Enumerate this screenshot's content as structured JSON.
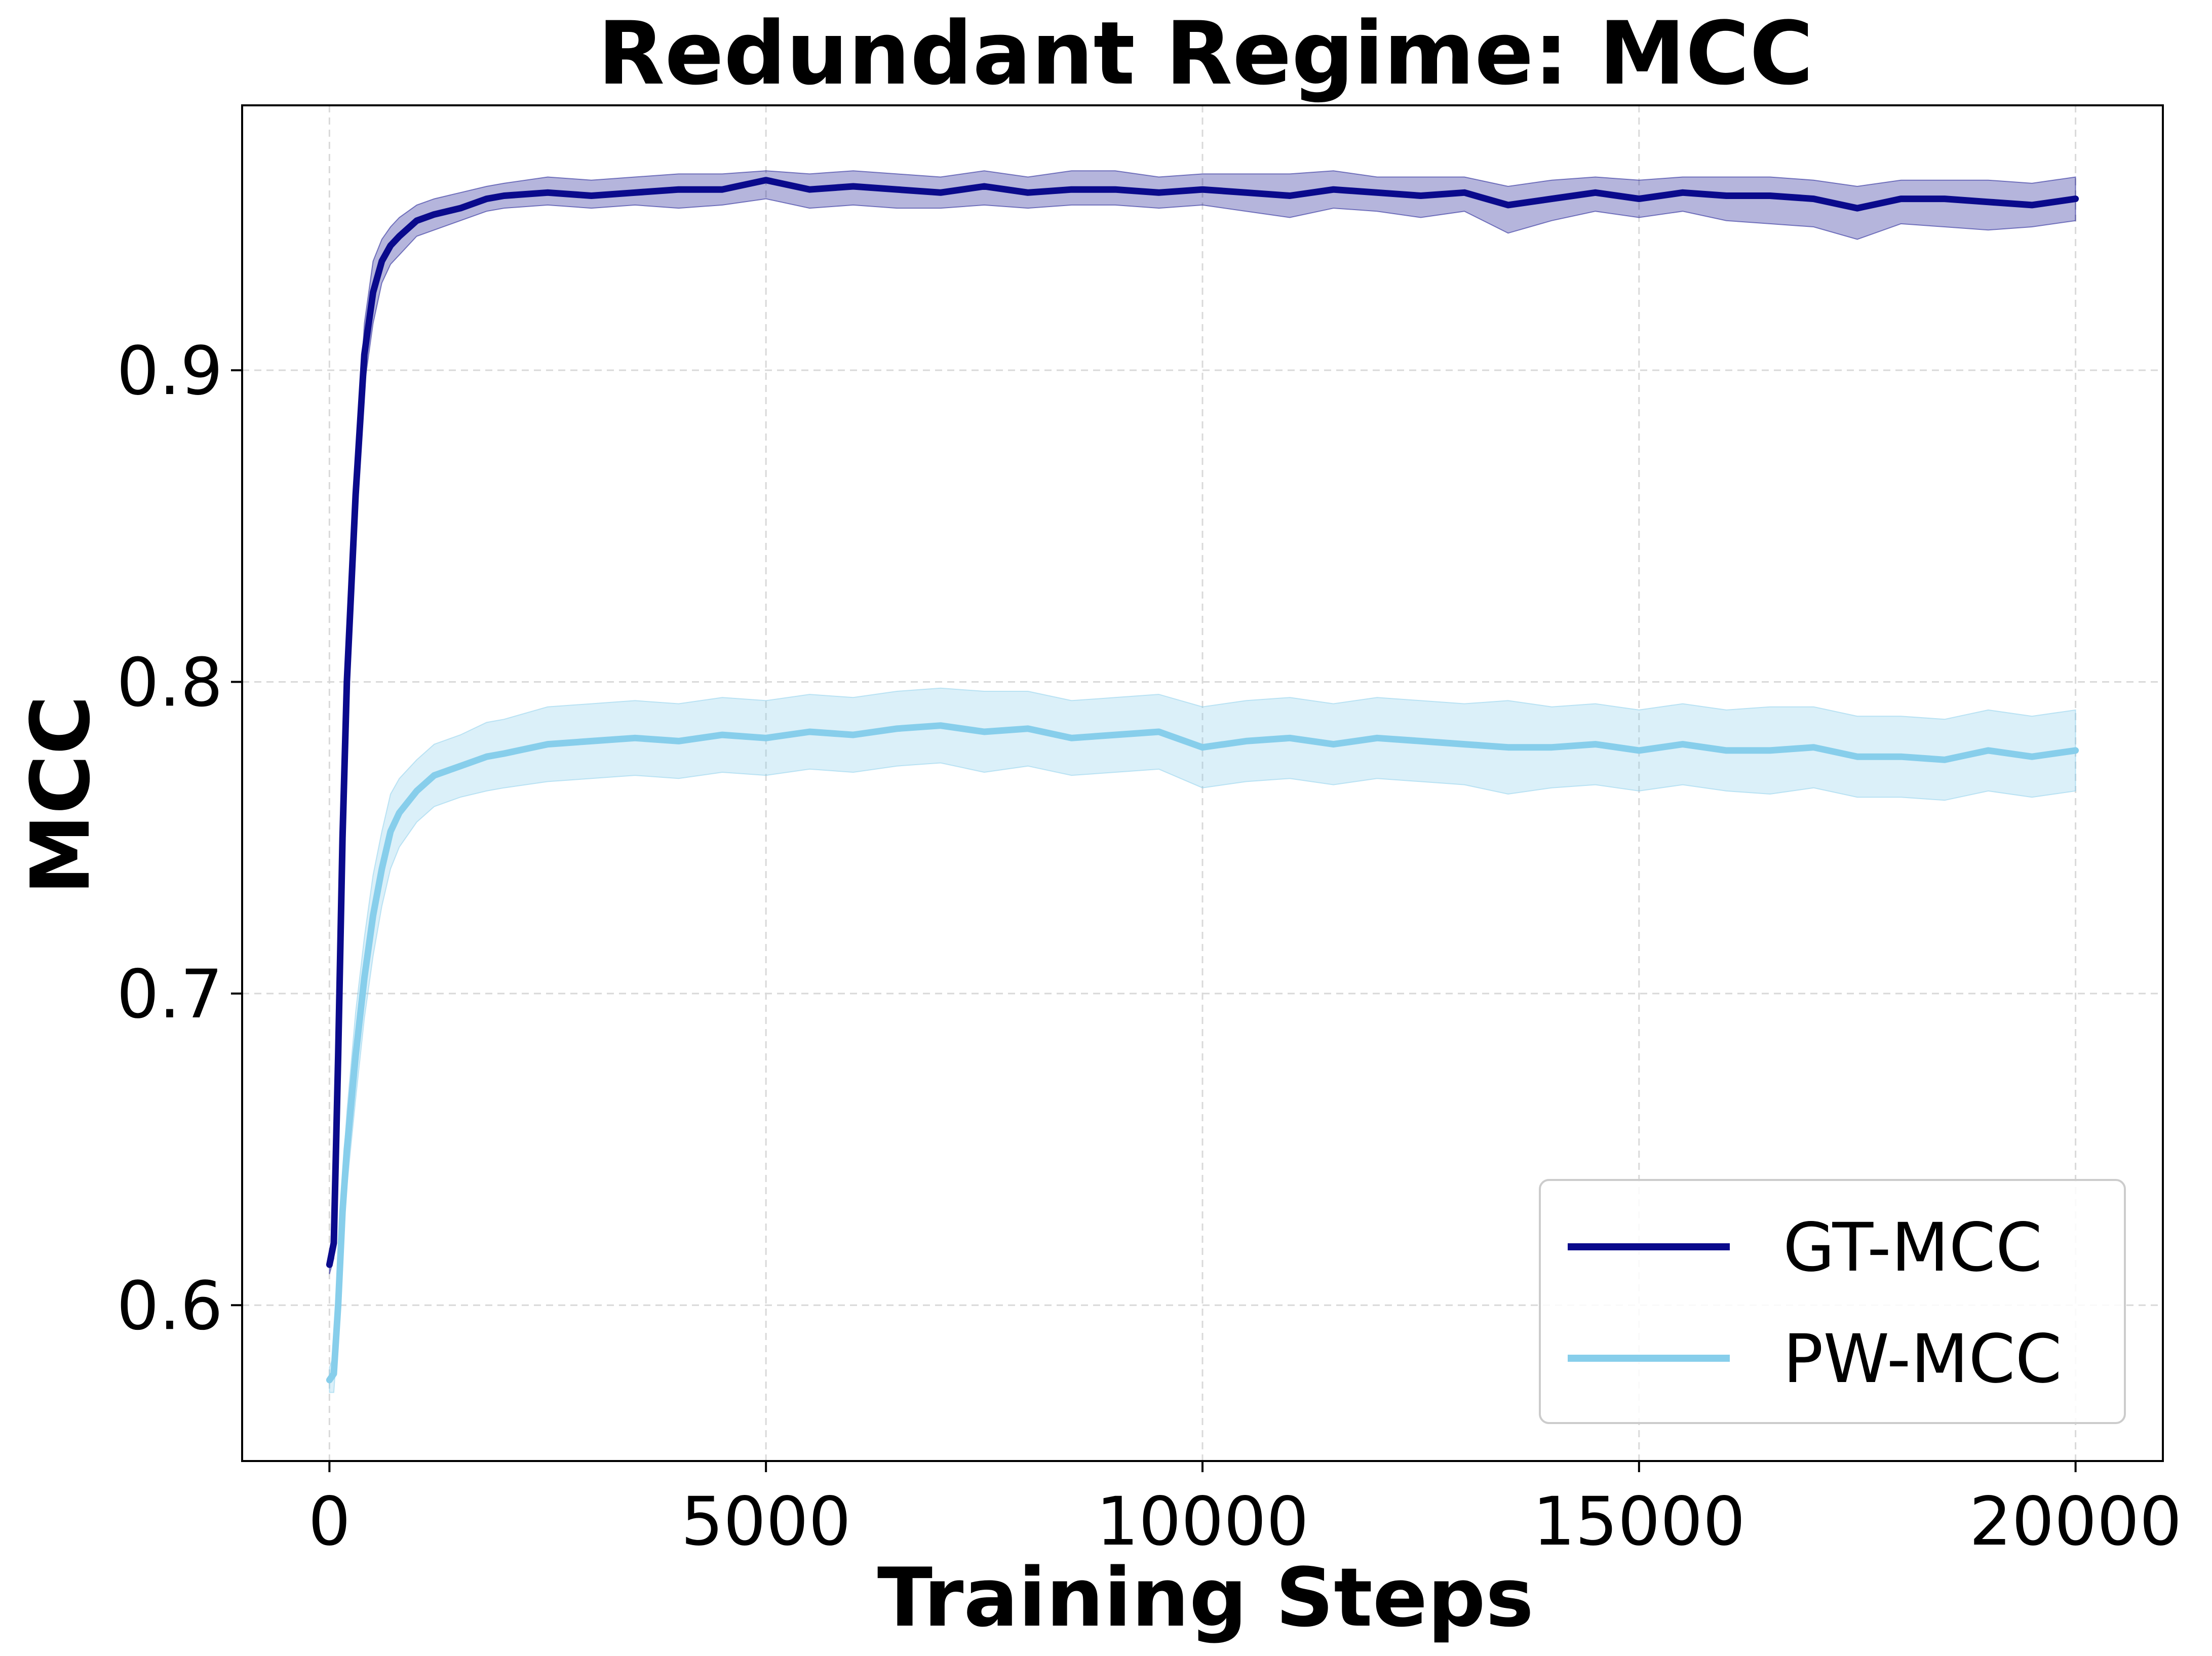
{
  "chart_data": {
    "type": "line",
    "title": "Redundant Regime: MCC",
    "xlabel": "Training Steps",
    "ylabel": "MCC",
    "xlim": [
      -1000,
      21000
    ],
    "ylim": [
      0.55,
      0.985
    ],
    "xticks": [
      0,
      5000,
      10000,
      15000,
      20000
    ],
    "xtick_labels": [
      "0",
      "5000",
      "10000",
      "15000",
      "20000"
    ],
    "yticks": [
      0.6,
      0.7,
      0.8,
      0.9
    ],
    "ytick_labels": [
      "0.6",
      "0.7",
      "0.8",
      "0.9"
    ],
    "grid": true,
    "legend_position": "lower-right",
    "series": [
      {
        "name": "GT-MCC",
        "color": "#0a0a8c",
        "band_opacity": 0.3,
        "x": [
          0,
          50,
          100,
          150,
          200,
          300,
          400,
          500,
          600,
          700,
          800,
          1000,
          1200,
          1500,
          1800,
          2000,
          2500,
          3000,
          3500,
          4000,
          4500,
          5000,
          5500,
          6000,
          6500,
          7000,
          7500,
          8000,
          8500,
          9000,
          9500,
          10000,
          10500,
          11000,
          11500,
          12000,
          12500,
          13000,
          13500,
          14000,
          14500,
          15000,
          15500,
          16000,
          16500,
          17000,
          17500,
          18000,
          18500,
          19000,
          19500,
          20000
        ],
        "mean": [
          0.613,
          0.62,
          0.68,
          0.75,
          0.8,
          0.86,
          0.905,
          0.925,
          0.935,
          0.94,
          0.943,
          0.948,
          0.95,
          0.952,
          0.955,
          0.956,
          0.957,
          0.956,
          0.957,
          0.958,
          0.958,
          0.961,
          0.958,
          0.959,
          0.958,
          0.957,
          0.959,
          0.957,
          0.958,
          0.958,
          0.957,
          0.958,
          0.957,
          0.956,
          0.958,
          0.957,
          0.956,
          0.957,
          0.953,
          0.955,
          0.957,
          0.955,
          0.957,
          0.956,
          0.956,
          0.955,
          0.952,
          0.955,
          0.955,
          0.954,
          0.953,
          0.955
        ],
        "lower": [
          0.61,
          0.615,
          0.672,
          0.742,
          0.792,
          0.852,
          0.895,
          0.915,
          0.928,
          0.934,
          0.937,
          0.943,
          0.945,
          0.948,
          0.951,
          0.952,
          0.953,
          0.952,
          0.953,
          0.952,
          0.953,
          0.955,
          0.952,
          0.953,
          0.952,
          0.952,
          0.953,
          0.952,
          0.953,
          0.953,
          0.952,
          0.953,
          0.951,
          0.949,
          0.952,
          0.951,
          0.949,
          0.951,
          0.944,
          0.948,
          0.951,
          0.949,
          0.951,
          0.948,
          0.947,
          0.946,
          0.942,
          0.947,
          0.946,
          0.945,
          0.946,
          0.948
        ],
        "upper": [
          0.616,
          0.625,
          0.688,
          0.758,
          0.808,
          0.868,
          0.915,
          0.935,
          0.942,
          0.946,
          0.949,
          0.953,
          0.955,
          0.957,
          0.959,
          0.96,
          0.962,
          0.961,
          0.962,
          0.963,
          0.963,
          0.964,
          0.963,
          0.964,
          0.963,
          0.962,
          0.964,
          0.962,
          0.964,
          0.964,
          0.962,
          0.963,
          0.963,
          0.963,
          0.964,
          0.962,
          0.962,
          0.962,
          0.959,
          0.961,
          0.962,
          0.961,
          0.962,
          0.962,
          0.962,
          0.961,
          0.959,
          0.961,
          0.961,
          0.961,
          0.96,
          0.962
        ]
      },
      {
        "name": "PW-MCC",
        "color": "#87ceeb",
        "band_opacity": 0.3,
        "x": [
          0,
          50,
          100,
          150,
          200,
          300,
          400,
          500,
          600,
          700,
          800,
          1000,
          1200,
          1500,
          1800,
          2000,
          2500,
          3000,
          3500,
          4000,
          4500,
          5000,
          5500,
          6000,
          6500,
          7000,
          7500,
          8000,
          8500,
          9000,
          9500,
          10000,
          10500,
          11000,
          11500,
          12000,
          12500,
          13000,
          13500,
          14000,
          14500,
          15000,
          15500,
          16000,
          16500,
          17000,
          17500,
          18000,
          18500,
          19000,
          19500,
          20000
        ],
        "mean": [
          0.576,
          0.578,
          0.6,
          0.63,
          0.65,
          0.68,
          0.705,
          0.725,
          0.74,
          0.752,
          0.758,
          0.765,
          0.77,
          0.773,
          0.776,
          0.777,
          0.78,
          0.781,
          0.782,
          0.781,
          0.783,
          0.782,
          0.784,
          0.783,
          0.785,
          0.786,
          0.784,
          0.785,
          0.782,
          0.783,
          0.784,
          0.779,
          0.781,
          0.782,
          0.78,
          0.782,
          0.781,
          0.78,
          0.779,
          0.779,
          0.78,
          0.778,
          0.78,
          0.778,
          0.778,
          0.779,
          0.776,
          0.776,
          0.775,
          0.778,
          0.776,
          0.778
        ],
        "lower": [
          0.572,
          0.572,
          0.592,
          0.62,
          0.638,
          0.666,
          0.692,
          0.712,
          0.728,
          0.74,
          0.747,
          0.755,
          0.76,
          0.763,
          0.765,
          0.766,
          0.768,
          0.769,
          0.77,
          0.769,
          0.771,
          0.77,
          0.772,
          0.771,
          0.773,
          0.774,
          0.771,
          0.773,
          0.77,
          0.771,
          0.772,
          0.766,
          0.768,
          0.769,
          0.767,
          0.769,
          0.768,
          0.767,
          0.764,
          0.766,
          0.767,
          0.765,
          0.767,
          0.765,
          0.764,
          0.766,
          0.763,
          0.763,
          0.762,
          0.765,
          0.763,
          0.765
        ],
        "upper": [
          0.58,
          0.584,
          0.608,
          0.64,
          0.662,
          0.694,
          0.718,
          0.738,
          0.752,
          0.764,
          0.769,
          0.775,
          0.78,
          0.783,
          0.787,
          0.788,
          0.792,
          0.793,
          0.794,
          0.793,
          0.795,
          0.794,
          0.796,
          0.795,
          0.797,
          0.798,
          0.797,
          0.797,
          0.794,
          0.795,
          0.796,
          0.792,
          0.794,
          0.795,
          0.793,
          0.795,
          0.794,
          0.793,
          0.794,
          0.792,
          0.793,
          0.791,
          0.793,
          0.791,
          0.792,
          0.792,
          0.789,
          0.789,
          0.788,
          0.791,
          0.789,
          0.791
        ]
      }
    ]
  }
}
